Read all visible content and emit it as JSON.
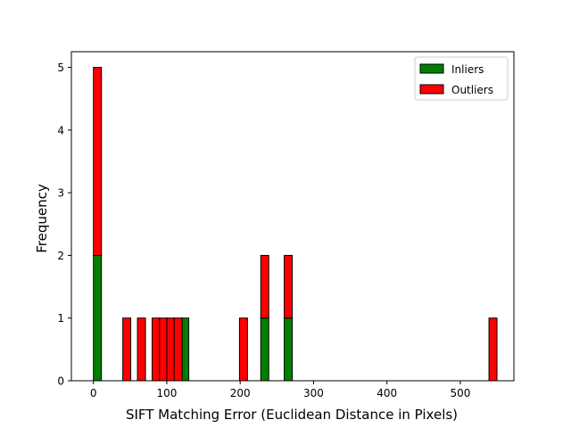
{
  "chart_data": {
    "type": "bar",
    "stacked": true,
    "title": "",
    "xlabel": "SIFT Matching Error (Euclidean Distance in Pixels)",
    "ylabel": "Frequency",
    "xlim": [
      -30,
      573
    ],
    "ylim": [
      0,
      5.25
    ],
    "xticks": [
      0,
      100,
      200,
      300,
      400,
      500
    ],
    "yticks": [
      0,
      1,
      2,
      3,
      4,
      5
    ],
    "bin_width": 10.9,
    "grid": false,
    "legend_position": "top-right",
    "series": [
      {
        "name": "Inliers",
        "color": "#008000",
        "points": [
          {
            "x": 5.5,
            "y": 2
          },
          {
            "x": 124.5,
            "y": 1
          },
          {
            "x": 233.5,
            "y": 1
          },
          {
            "x": 265.5,
            "y": 1
          }
        ]
      },
      {
        "name": "Outliers",
        "color": "#ff0000",
        "points": [
          {
            "x": 5.5,
            "y": 3
          },
          {
            "x": 45.5,
            "y": 1
          },
          {
            "x": 65.5,
            "y": 1
          },
          {
            "x": 85.5,
            "y": 1
          },
          {
            "x": 95.5,
            "y": 1
          },
          {
            "x": 105.5,
            "y": 1
          },
          {
            "x": 115.5,
            "y": 1
          },
          {
            "x": 204.5,
            "y": 1
          },
          {
            "x": 233.5,
            "y": 1
          },
          {
            "x": 265.5,
            "y": 1
          },
          {
            "x": 544.5,
            "y": 1
          }
        ]
      }
    ]
  }
}
